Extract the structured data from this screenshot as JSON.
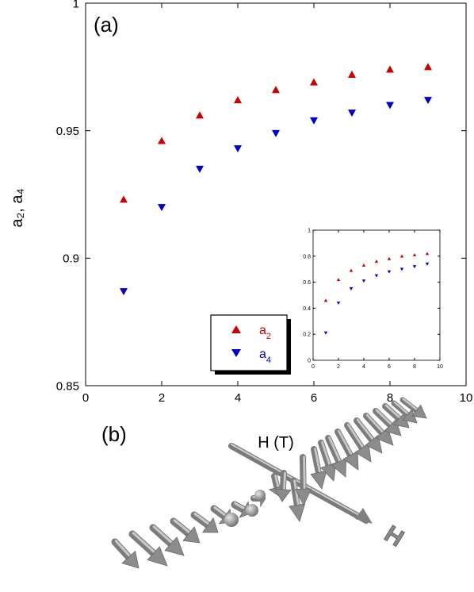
{
  "panel_labels": {
    "a": "(a)",
    "b": "(b)"
  },
  "arrow_panel": {
    "axis_label": "H",
    "arrow_color": "#9a9a9a"
  },
  "colors": {
    "a2": "#cc0000",
    "a4": "#0000cc",
    "axis": "#000000"
  },
  "chart_data": [
    {
      "type": "scatter",
      "title": "",
      "xlabel": "H (T)",
      "ylabel": "a₂, a₄",
      "xlim": [
        0,
        10
      ],
      "ylim": [
        0.85,
        1.0
      ],
      "xticks": [
        "0",
        "2",
        "4",
        "6",
        "8",
        "10"
      ],
      "yticks": [
        "0.85",
        "0.9",
        "0.95",
        "1"
      ],
      "grid": false,
      "legend_position": "bottom-center",
      "series": [
        {
          "name": "a2",
          "legend_main": "a",
          "legend_sub": "2",
          "marker": "triangle-up",
          "color": "#cc0000",
          "x": [
            1,
            2,
            3,
            4,
            5,
            6,
            7,
            8,
            9
          ],
          "y": [
            0.923,
            0.946,
            0.956,
            0.962,
            0.966,
            0.969,
            0.972,
            0.974,
            0.975
          ]
        },
        {
          "name": "a4",
          "legend_main": "a",
          "legend_sub": "4",
          "marker": "triangle-down",
          "color": "#0000cc",
          "x": [
            1,
            2,
            3,
            4,
            5,
            6,
            7,
            8,
            9
          ],
          "y": [
            0.887,
            0.92,
            0.935,
            0.943,
            0.949,
            0.954,
            0.957,
            0.96,
            0.962
          ]
        }
      ]
    },
    {
      "type": "scatter",
      "title": "",
      "xlabel": "",
      "ylabel": "",
      "xlim": [
        0,
        10
      ],
      "ylim": [
        0,
        1
      ],
      "xticks": [
        "0",
        "2",
        "4",
        "6",
        "8",
        "10"
      ],
      "yticks": [
        "0",
        "0.2",
        "0.4",
        "0.6",
        "0.8",
        "1"
      ],
      "grid": false,
      "series": [
        {
          "marker": "triangle-up",
          "color": "#cc0000",
          "x": [
            1,
            2,
            3,
            4,
            5,
            6,
            7,
            8,
            9
          ],
          "y": [
            0.46,
            0.62,
            0.69,
            0.73,
            0.76,
            0.78,
            0.8,
            0.81,
            0.82
          ]
        },
        {
          "marker": "triangle-down",
          "color": "#0000cc",
          "x": [
            1,
            2,
            3,
            4,
            5,
            6,
            7,
            8,
            9
          ],
          "y": [
            0.21,
            0.44,
            0.55,
            0.61,
            0.65,
            0.68,
            0.7,
            0.72,
            0.74
          ]
        }
      ]
    }
  ]
}
